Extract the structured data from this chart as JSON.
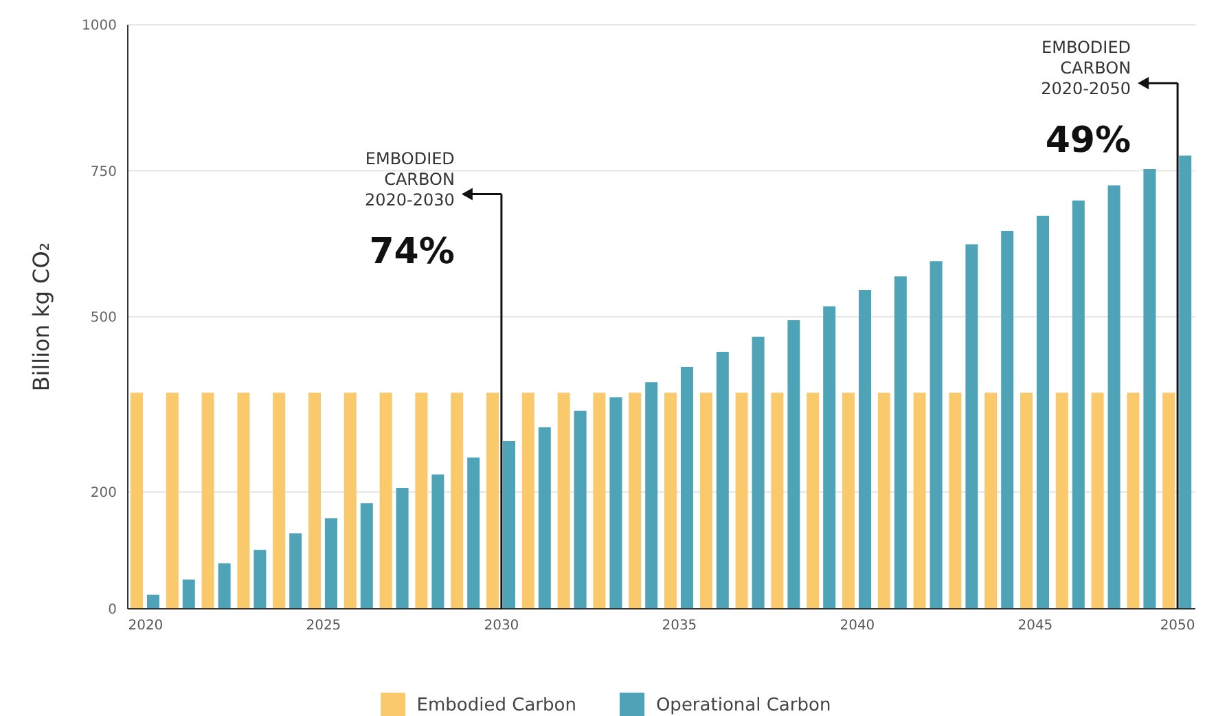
{
  "chart_data": {
    "type": "bar",
    "ylabel": "Billion kg CO₂",
    "categories": [
      "2020",
      null,
      null,
      null,
      null,
      "2025",
      null,
      null,
      null,
      null,
      "2030",
      null,
      null,
      null,
      null,
      "2035",
      null,
      null,
      null,
      null,
      "2040",
      null,
      null,
      null,
      null,
      "2045",
      null,
      null,
      null,
      "2050"
    ],
    "series": [
      {
        "name": "Embodied Carbon",
        "color": "#f9c96b",
        "values": [
          370,
          370,
          370,
          370,
          370,
          370,
          370,
          370,
          370,
          370,
          370,
          370,
          370,
          370,
          370,
          370,
          370,
          370,
          370,
          370,
          370,
          370,
          370,
          370,
          370,
          370,
          370,
          370,
          370,
          370
        ]
      },
      {
        "name": "Operational Carbon",
        "color": "#4ea3b6",
        "values": [
          24,
          50,
          78,
          101,
          129,
          155,
          181,
          207,
          230,
          259,
          287,
          311,
          339,
          362,
          388,
          414,
          440,
          466,
          494,
          518,
          546,
          569,
          595,
          624,
          647,
          673,
          699,
          725,
          753,
          776
        ]
      }
    ],
    "ylim": [
      0,
      1000
    ],
    "yticks": [
      0,
      200,
      500,
      750,
      1000
    ],
    "grid": "y",
    "legend": "bottom",
    "ref_lines": [
      {
        "axis": "x",
        "value": "2030",
        "label": "EMBODIED\nCARBON\n2020-2030\n74%"
      },
      {
        "axis": "x",
        "value": "2050",
        "label": "EMBODIED\nCARBON\n2020-2050\n49%"
      }
    ]
  }
}
